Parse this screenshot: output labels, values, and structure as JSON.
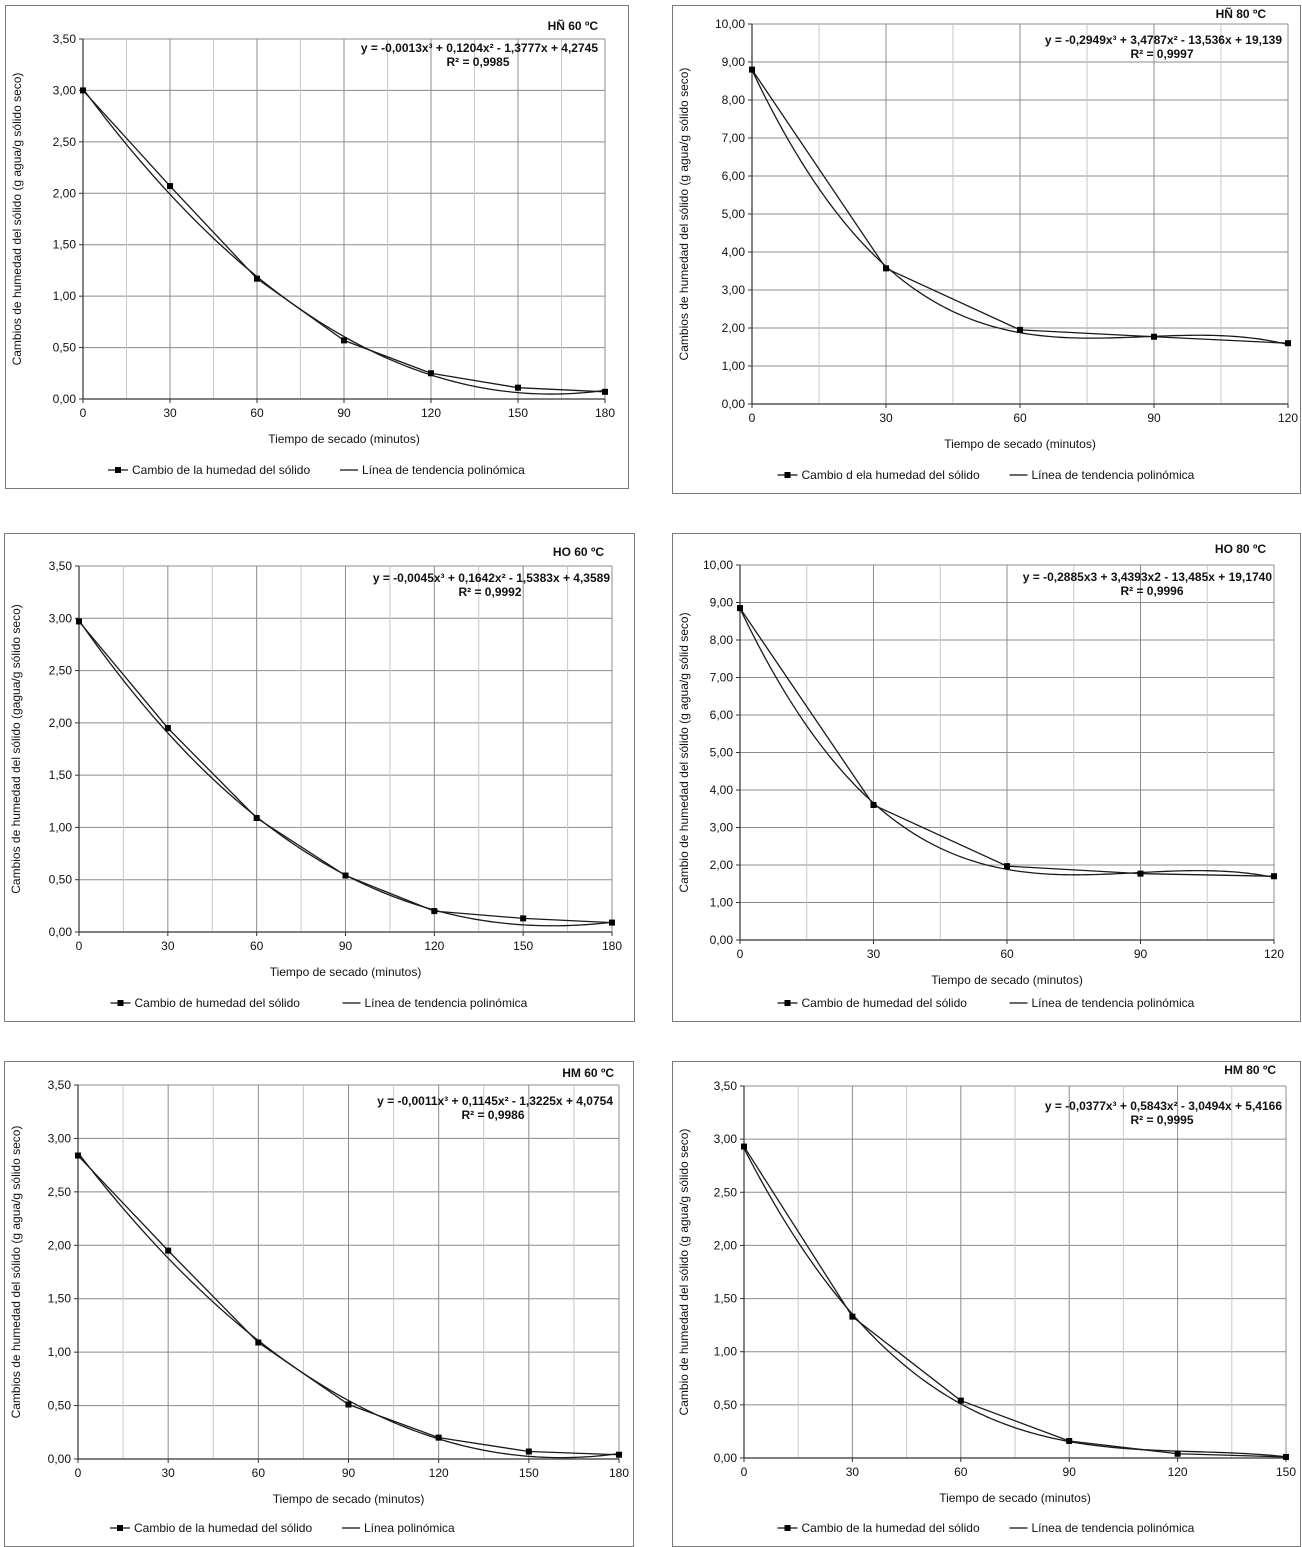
{
  "chart_data": [
    {
      "type": "line",
      "title": "HÑ 60 ºC",
      "xlabel": "Tiempo de secado (minutos)",
      "ylabel": "Cambios de humedad del sólido (g agua/g sólido seco)",
      "xlim": [
        0,
        180
      ],
      "ylim": [
        0,
        3.5
      ],
      "x_ticks": [
        "0",
        "30",
        "60",
        "90",
        "120",
        "150",
        "180"
      ],
      "y_ticks": [
        "0,00",
        "0,50",
        "1,00",
        "1,50",
        "2,00",
        "2,50",
        "3,00",
        "3,50"
      ],
      "equation": "y = -0,0013x³ + 0,1204x² - 1,3777x + 4,2745",
      "r2": "R² = 0,9985",
      "trend_coeffs": [
        -0.0013,
        0.1204,
        -1.3777,
        4.2745
      ],
      "legend": [
        "Cambio de la humedad del sólido",
        "Línea de tendencia polinómica"
      ],
      "grid": true,
      "x": [
        0,
        30,
        60,
        90,
        120,
        150,
        180
      ],
      "series": [
        {
          "values": [
            3.0,
            2.07,
            1.17,
            0.57,
            0.25,
            0.11,
            0.07
          ]
        }
      ]
    },
    {
      "type": "line",
      "title": "HÑ 80 ºC",
      "xlabel": "Tiempo de secado (minutos)",
      "ylabel": "Cambios de humedad del sólido (g agua/g sólido seco)",
      "xlim": [
        0,
        120
      ],
      "ylim": [
        0,
        10
      ],
      "x_ticks": [
        "0",
        "30",
        "60",
        "90",
        "120"
      ],
      "y_ticks": [
        "0,00",
        "1,00",
        "2,00",
        "3,00",
        "4,00",
        "5,00",
        "6,00",
        "7,00",
        "8,00",
        "9,00",
        "10,00"
      ],
      "equation": "y = -0,2949x³ + 3,4787x² - 13,536x + 19,139",
      "r2": "R² = 0,9997",
      "trend_coeffs": [
        -0.2949,
        3.4787,
        -13.536,
        19.139
      ],
      "legend": [
        "Cambio d ela humedad del sólido",
        "Línea de tendencia polinómica"
      ],
      "grid": true,
      "x": [
        0,
        30,
        60,
        90,
        120
      ],
      "series": [
        {
          "values": [
            8.8,
            3.57,
            1.95,
            1.77,
            1.6
          ]
        }
      ]
    },
    {
      "type": "line",
      "title": "HO 60 ºC",
      "xlabel": "Tiempo de secado (minutos)",
      "ylabel": "Cambios de humedad del sólido (gagua/g sólido seco)",
      "xlim": [
        0,
        180
      ],
      "ylim": [
        0,
        3.5
      ],
      "x_ticks": [
        "0",
        "30",
        "60",
        "90",
        "120",
        "150",
        "180"
      ],
      "y_ticks": [
        "0,00",
        "0,50",
        "1,00",
        "1,50",
        "2,00",
        "2,50",
        "3,00",
        "3,50"
      ],
      "equation": "y = -0,0045x³ + 0,1642x² - 1,5383x + 4,3589",
      "r2": "R² = 0,9992",
      "trend_coeffs": [
        -0.0045,
        0.1642,
        -1.5383,
        4.3589
      ],
      "legend": [
        "Cambio de humedad del sólido",
        "Línea de tendencia polinómica"
      ],
      "grid": true,
      "x": [
        0,
        30,
        60,
        90,
        120,
        150,
        180
      ],
      "series": [
        {
          "values": [
            2.97,
            1.95,
            1.09,
            0.54,
            0.2,
            0.13,
            0.09
          ]
        }
      ]
    },
    {
      "type": "line",
      "title": "HO 80 ºC",
      "xlabel": "Tiempo de secado (minutos)",
      "ylabel": "Cambio de humedad del sólido (g agua/g sólid seco)",
      "xlim": [
        0,
        120
      ],
      "ylim": [
        0,
        10
      ],
      "x_ticks": [
        "0",
        "30",
        "60",
        "90",
        "120"
      ],
      "y_ticks": [
        "0,00",
        "1,00",
        "2,00",
        "3,00",
        "4,00",
        "5,00",
        "6,00",
        "7,00",
        "8,00",
        "9,00",
        "10,00"
      ],
      "equation": "y = -0,2885x3 + 3,4393x2 - 13,485x + 19,1740",
      "r2": "R² = 0,9996",
      "trend_coeffs": [
        -0.2885,
        3.4393,
        -13.485,
        19.174
      ],
      "legend": [
        "Cambio de humedad del sólido",
        "Línea de tendencia polinómica"
      ],
      "grid": true,
      "x": [
        0,
        30,
        60,
        90,
        120
      ],
      "series": [
        {
          "values": [
            8.85,
            3.6,
            1.97,
            1.77,
            1.7
          ]
        }
      ]
    },
    {
      "type": "line",
      "title": "HM 60 ºC",
      "xlabel": "Tiempo  de secado (minutos)",
      "ylabel": "Cambios de humedad del sólido (g agua/g sólido  seco)",
      "xlim": [
        0,
        180
      ],
      "ylim": [
        0,
        3.5
      ],
      "x_ticks": [
        "0",
        "30",
        "60",
        "90",
        "120",
        "150",
        "180"
      ],
      "y_ticks": [
        "0,00",
        "0,50",
        "1,00",
        "1,50",
        "2,00",
        "2,50",
        "3,00",
        "3,50"
      ],
      "equation": "y = -0,0011x³ + 0,1145x² - 1,3225x + 4,0754",
      "r2": "R² = 0,9986",
      "trend_coeffs": [
        -0.0011,
        0.1145,
        -1.3225,
        4.0754
      ],
      "legend": [
        "Cambio de la humedad del sólido",
        "Línea polinómica"
      ],
      "grid": true,
      "x": [
        0,
        30,
        60,
        90,
        120,
        150,
        180
      ],
      "series": [
        {
          "values": [
            2.84,
            1.95,
            1.09,
            0.51,
            0.2,
            0.07,
            0.04
          ]
        }
      ]
    },
    {
      "type": "line",
      "title": "HM 80 ºC",
      "xlabel": "Tiempo de secado (minutos)",
      "ylabel": "Cambio de humedad del sólido  (g agua/g sólido seco)",
      "xlim": [
        0,
        150
      ],
      "ylim": [
        0,
        3.5
      ],
      "x_ticks": [
        "0",
        "30",
        "60",
        "90",
        "120",
        "150"
      ],
      "y_ticks": [
        "0,00",
        "0,50",
        "1,00",
        "1,50",
        "2,00",
        "2,50",
        "3,00",
        "3,50"
      ],
      "equation": "y = -0,0377x³ + 0,5843x² - 3,0494x + 5,4166",
      "r2": "R² = 0,9995",
      "trend_coeffs": [
        -0.0377,
        0.5843,
        -3.0494,
        5.4166
      ],
      "legend": [
        "Cambio de la humedad del sólido",
        "Línea de tendencia polinómica"
      ],
      "grid": true,
      "x": [
        0,
        30,
        60,
        90,
        120,
        150
      ],
      "series": [
        {
          "values": [
            2.93,
            1.33,
            0.54,
            0.16,
            0.04,
            0.01
          ]
        }
      ]
    }
  ]
}
